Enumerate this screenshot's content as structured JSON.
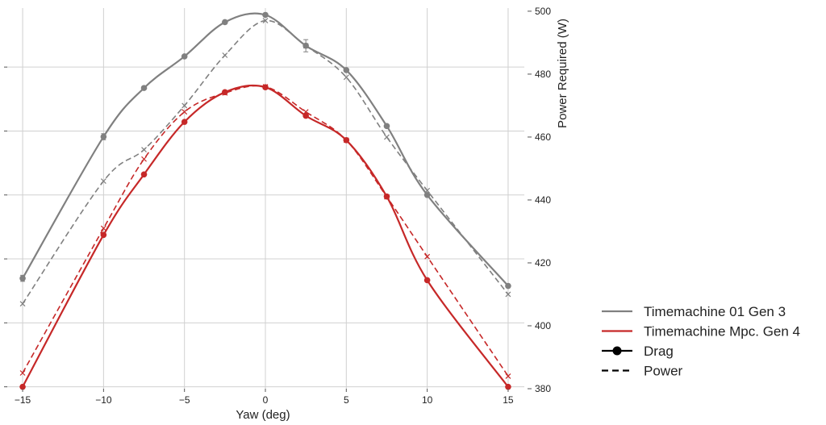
{
  "chart_data": {
    "type": "line",
    "xlabel": "Yaw (deg)",
    "ylabel": "Power Required (W)",
    "x": [
      -15,
      -10,
      -7.5,
      -5,
      -2.5,
      0,
      2.5,
      5,
      7.5,
      10,
      15
    ],
    "x_ticks": [
      -15,
      -10,
      -5,
      0,
      5,
      10,
      15
    ],
    "x_tick_labels": [
      "−15",
      "−10",
      "−5",
      "0",
      "5",
      "10",
      "15"
    ],
    "xlim": [
      -16,
      16
    ],
    "right_y_ticks": [
      380,
      400,
      420,
      440,
      460,
      480,
      500
    ],
    "right_ylim": [
      380,
      501
    ],
    "left_ylim": [
      0,
      1
    ],
    "left_y_ticks_unlabeled": [
      0.005,
      0.173,
      0.341,
      0.509,
      0.677,
      0.845
    ],
    "grid": true,
    "legend_position": "right",
    "series": [
      {
        "name": "Timemachine 01 Gen 3",
        "metric": "Drag",
        "color": "#808080",
        "style": "solid",
        "marker": "circle",
        "axis": "left",
        "values": [
          0.29,
          0.662,
          0.79,
          0.873,
          0.963,
          0.982,
          0.901,
          0.837,
          0.69,
          0.509,
          0.27
        ],
        "errors": [
          0.008,
          0.008,
          0,
          0,
          0,
          0,
          0.016,
          0,
          0,
          0,
          0
        ]
      },
      {
        "name": "Timemachine 01 Gen 3",
        "metric": "Power",
        "color": "#808080",
        "style": "dashed",
        "marker": "x",
        "axis": "right",
        "values": [
          407,
          446,
          456,
          470,
          486,
          497,
          489,
          479,
          460,
          443,
          410
        ]
      },
      {
        "name": "Timemachine Mpc. Gen 4",
        "metric": "Drag",
        "color": "#c62828",
        "style": "solid",
        "marker": "circle",
        "axis": "left",
        "values": [
          0.005,
          0.404,
          0.563,
          0.701,
          0.779,
          0.792,
          0.717,
          0.653,
          0.505,
          0.285,
          0.005
        ]
      },
      {
        "name": "Timemachine Mpc. Gen 4",
        "metric": "Power",
        "color": "#c62828",
        "style": "dashed",
        "marker": "x",
        "axis": "right",
        "values": [
          385,
          431,
          453,
          468,
          474,
          476,
          468,
          459,
          441,
          422,
          384
        ]
      }
    ]
  },
  "legend": [
    {
      "label": "Timemachine 01 Gen 3",
      "color": "#808080",
      "style": "solid",
      "marker": "none"
    },
    {
      "label": "Timemachine Mpc. Gen 4",
      "color": "#c62828",
      "style": "solid",
      "marker": "none"
    },
    {
      "label": "Drag",
      "color": "#000000",
      "style": "solid",
      "marker": "circle"
    },
    {
      "label": "Power",
      "color": "#000000",
      "style": "dashed",
      "marker": "none"
    }
  ]
}
